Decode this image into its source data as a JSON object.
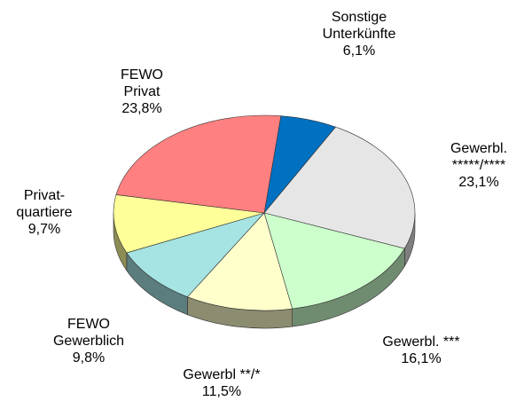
{
  "chart_data": {
    "type": "pie3d",
    "categories": [
      "Sonstige\nUnterkünfte",
      "Gewerbl.\n*****/****",
      "Gewerbl. ***",
      "Gewerbl **/*",
      "FEWO\nGewerblich",
      "Privat-\nquartiere",
      "FEWO\nPrivat"
    ],
    "values": [
      6.1,
      23.1,
      16.1,
      11.5,
      9.8,
      9.7,
      23.8
    ],
    "value_labels": [
      "6,1%",
      "23,1%",
      "16,1%",
      "11,5%",
      "9,8%",
      "9,7%",
      "23,8%"
    ],
    "colors": [
      "#0070c0",
      "#e6e6e6",
      "#ccffcc",
      "#ffffcc",
      "#a6e3e3",
      "#ffff99",
      "#ff8080"
    ]
  }
}
